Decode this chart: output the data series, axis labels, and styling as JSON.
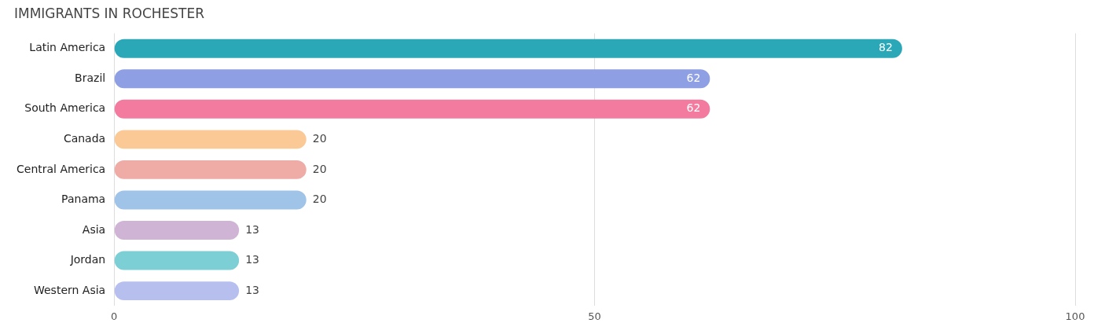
{
  "chart_data": {
    "type": "bar",
    "orientation": "horizontal",
    "title": "IMMIGRANTS IN ROCHESTER",
    "categories": [
      "Latin America",
      "Brazil",
      "South America",
      "Canada",
      "Central America",
      "Panama",
      "Asia",
      "Jordan",
      "Western Asia"
    ],
    "values": [
      82,
      62,
      62,
      20,
      20,
      20,
      13,
      13,
      13
    ],
    "colors": [
      "#2aa8b8",
      "#8f9fe3",
      "#f47ba0",
      "#fbc995",
      "#efaba5",
      "#a0c3e8",
      "#d0b4d5",
      "#7ccfd4",
      "#b7bfee"
    ],
    "xlim": [
      0,
      100
    ],
    "xticks": [
      0,
      50,
      100
    ],
    "grid": "x",
    "data_labels": true,
    "legend": false
  }
}
